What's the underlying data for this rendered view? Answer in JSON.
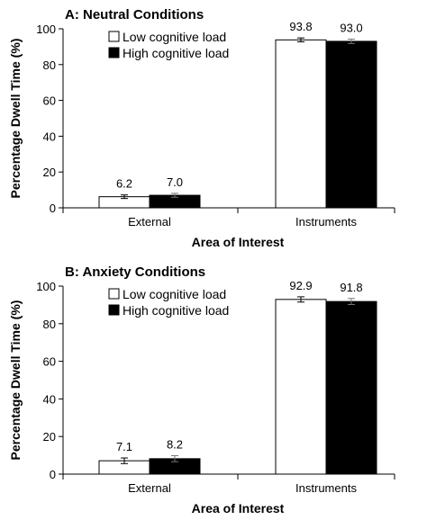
{
  "chart_data": [
    {
      "type": "bar",
      "title": "A: Neutral Conditions",
      "xlabel": "Area of Interest",
      "ylabel": "Percentage Dwell Time (%)",
      "categories": [
        "External",
        "Instruments"
      ],
      "ylim": [
        0,
        100
      ],
      "yticks": [
        "0",
        "20",
        "40",
        "60",
        "80",
        "100"
      ],
      "legend_position": "top-center",
      "series": [
        {
          "name": "Low cognitive load",
          "values": [
            6.2,
            93.8
          ],
          "labels": [
            "6.2",
            "93.8"
          ],
          "errors": [
            1.0,
            1.1
          ],
          "color": "#ffffff"
        },
        {
          "name": "High cognitive load",
          "values": [
            7.0,
            93.0
          ],
          "labels": [
            "7.0",
            "93.0"
          ],
          "errors": [
            1.1,
            1.2
          ],
          "color": "#000000"
        }
      ]
    },
    {
      "type": "bar",
      "title": "B: Anxiety Conditions",
      "xlabel": "Area of Interest",
      "ylabel": "Percentage Dwell Time (%)",
      "categories": [
        "External",
        "Instruments"
      ],
      "ylim": [
        0,
        100
      ],
      "yticks": [
        "0",
        "20",
        "40",
        "60",
        "80",
        "100"
      ],
      "legend_position": "top-center",
      "series": [
        {
          "name": "Low cognitive load",
          "values": [
            7.1,
            92.9
          ],
          "labels": [
            "7.1",
            "92.9"
          ],
          "errors": [
            1.5,
            1.4
          ],
          "color": "#ffffff"
        },
        {
          "name": "High cognitive load",
          "values": [
            8.2,
            91.8
          ],
          "labels": [
            "8.2",
            "91.8"
          ],
          "errors": [
            1.6,
            1.6
          ],
          "color": "#000000"
        }
      ]
    }
  ]
}
